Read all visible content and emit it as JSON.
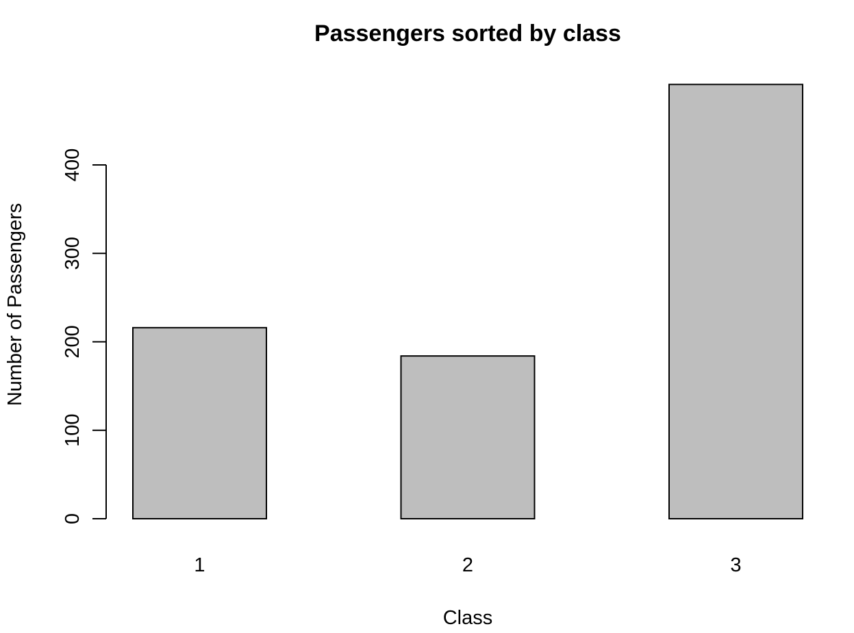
{
  "chart_data": {
    "type": "bar",
    "title": "Passengers sorted by class",
    "xlabel": "Class",
    "ylabel": "Number of Passengers",
    "categories": [
      "1",
      "2",
      "3"
    ],
    "values": [
      216,
      184,
      491
    ],
    "y_ticks": [
      0,
      100,
      200,
      300,
      400
    ],
    "ylim": [
      0,
      491
    ],
    "grid": false,
    "legend": "none",
    "colors": {
      "bar_fill": "#bebebe",
      "bar_stroke": "#000000",
      "axis": "#000000"
    }
  }
}
